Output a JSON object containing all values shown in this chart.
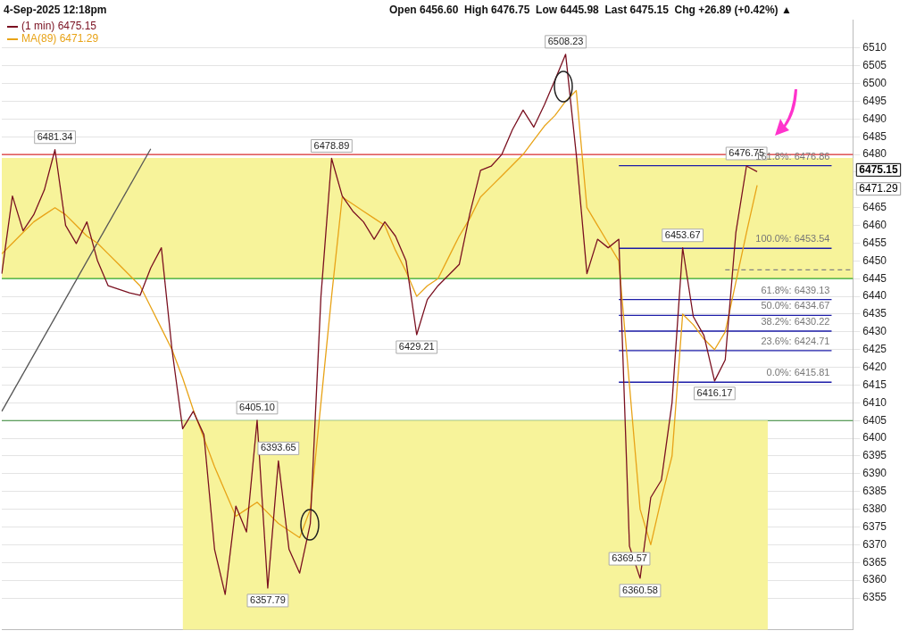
{
  "chart_data": {
    "type": "line",
    "title": "4-Sep-2025 12:18pm",
    "subtitle": "Open 6456.60  High 6476.75  Low 6445.98  Last 6475.15  Chg +26.89 (+0.42%) ▲",
    "categories": [
      null,
      null,
      null,
      null,
      null,
      null,
      null,
      null,
      null,
      null,
      null,
      null,
      null,
      null,
      null,
      null,
      null,
      null,
      null,
      null,
      null,
      null,
      null,
      null,
      null,
      null,
      null,
      null,
      null,
      null,
      null,
      null,
      null,
      null,
      null,
      null,
      null,
      null,
      null,
      null,
      null,
      null,
      null,
      null,
      null,
      null,
      null,
      null,
      null,
      null,
      null,
      null,
      null,
      null,
      null,
      null,
      null,
      null,
      null,
      null,
      null,
      null,
      null,
      null,
      null,
      null,
      null,
      null,
      null,
      null,
      null,
      null,
      null,
      null,
      null,
      null,
      null,
      null,
      null,
      null,
      null
    ],
    "ylim": [
      6346,
      6518
    ],
    "yticks": [
      6355,
      6360,
      6365,
      6370,
      6375,
      6380,
      6385,
      6390,
      6395,
      6400,
      6405,
      6410,
      6415,
      6420,
      6425,
      6430,
      6435,
      6440,
      6445,
      6450,
      6455,
      6460,
      6465,
      {
        "value": 6470,
        "label": null
      },
      {
        "value": 6475,
        "label": null
      },
      6480,
      6485,
      6490,
      6495,
      6500,
      6505,
      6510
    ],
    "tick_labels": "y",
    "grid": "y",
    "legend": "top left",
    "series": [
      {
        "name": "(1 min) 6475.15",
        "color": "#7a1020",
        "values": [
          6446.4,
          6468.3,
          6458.5,
          6463,
          6470,
          6481.34,
          6460,
          6454.9,
          6461,
          6450,
          6443,
          6442,
          6441,
          6440.3,
          6448,
          6453.7,
          6425,
          6402.7,
          6407.6,
          6401,
          6368.7,
          6356,
          6380.9,
          6373.6,
          6405.1,
          6357.79,
          6393.65,
          6368.7,
          6362,
          6376,
          6440,
          6478.89,
          6468.3,
          6464,
          6461,
          6456.1,
          6461,
          6457,
          6450,
          6429.21,
          6439.1,
          6443,
          6446,
          6449,
          6463.4,
          6475.5,
          6476.7,
          6480,
          6487,
          6492.5,
          6487.7,
          6494,
          6501,
          6508.23,
          6480,
          6446.4,
          6456.1,
          6453.7,
          6456.1,
          6369.57,
          6360.58,
          6383.3,
          6388.2,
          6410,
          6453.67,
          6434.3,
          6429,
          6416.17,
          6422.1,
          6458,
          6476.75,
          6475.15,
          null,
          null,
          null,
          null,
          null,
          null,
          null,
          null,
          null
        ]
      },
      {
        "name": "MA(89) 6471.29",
        "color": "#e8a317",
        "values": [
          6452,
          6455,
          6458,
          6461,
          6463,
          6465,
          6463,
          6460,
          6457,
          6455,
          6452,
          6449,
          6446,
          6443,
          6437,
          6431,
          6425,
          6417,
          6408,
          6400,
          6392,
          6385,
          6378,
          6380,
          6382,
          6379,
          6376,
          6374,
          6372,
          6380,
          6410,
          6440,
          6468,
          6466,
          6464,
          6462,
          6460,
          6453,
          6447,
          6440,
          6443,
          6445,
          6451,
          6457,
          6462,
          6468,
          6471,
          6474,
          6477,
          6480,
          6484,
          6488,
          6491,
          6495,
          6498,
          6465,
          6460,
          6455,
          6450,
          6415,
          6380,
          6370,
          6383,
          6395,
          6435,
          6432,
          6428,
          6425,
          6430,
          6444,
          6458,
          6471.29,
          null,
          null,
          null,
          null,
          null,
          null,
          null,
          null,
          null
        ]
      },
      {
        "color": "#555555",
        "values": [
          6407.6,
          null,
          null,
          null,
          null,
          null,
          null,
          null,
          null,
          null,
          null,
          null,
          null,
          null,
          6481.6,
          null,
          null,
          null,
          null,
          null,
          null,
          null,
          null,
          null,
          null,
          null,
          null,
          null,
          null,
          null,
          null,
          null,
          null,
          null,
          null,
          null,
          null,
          null,
          null,
          null,
          null,
          null,
          null,
          null,
          null,
          null,
          null,
          null,
          null,
          null,
          null,
          null,
          null,
          null,
          null,
          null,
          null,
          null,
          null,
          null,
          null,
          null,
          null,
          null,
          null,
          null,
          null,
          null,
          null,
          null,
          null,
          null,
          null,
          null,
          null,
          null,
          null,
          null,
          null,
          null,
          null
        ]
      },
      {
        "color": "#1c1ca8",
        "values": [
          null,
          null,
          null,
          null,
          null,
          null,
          null,
          null,
          null,
          null,
          null,
          null,
          null,
          null,
          null,
          null,
          null,
          null,
          null,
          null,
          null,
          null,
          null,
          null,
          null,
          null,
          null,
          null,
          null,
          null,
          null,
          null,
          null,
          null,
          null,
          null,
          null,
          null,
          null,
          null,
          null,
          null,
          null,
          null,
          null,
          null,
          null,
          null,
          null,
          null,
          null,
          null,
          null,
          null,
          null,
          null,
          null,
          null,
          6476.86,
          null,
          null,
          null,
          null,
          null,
          null,
          null,
          null,
          null,
          null,
          null,
          null,
          null,
          null,
          null,
          null,
          null,
          null,
          null,
          6476.86,
          null,
          null
        ]
      },
      {
        "color": "#1c1ca8",
        "values": [
          null,
          null,
          null,
          null,
          null,
          null,
          null,
          null,
          null,
          null,
          null,
          null,
          null,
          null,
          null,
          null,
          null,
          null,
          null,
          null,
          null,
          null,
          null,
          null,
          null,
          null,
          null,
          null,
          null,
          null,
          null,
          null,
          null,
          null,
          null,
          null,
          null,
          null,
          null,
          null,
          null,
          null,
          null,
          null,
          null,
          null,
          null,
          null,
          null,
          null,
          null,
          null,
          null,
          null,
          null,
          null,
          null,
          null,
          6453.54,
          null,
          null,
          null,
          null,
          null,
          null,
          null,
          null,
          null,
          null,
          null,
          null,
          null,
          null,
          null,
          null,
          null,
          null,
          null,
          6453.54,
          null,
          null
        ]
      },
      {
        "color": "#1c1ca8",
        "values": [
          null,
          null,
          null,
          null,
          null,
          null,
          null,
          null,
          null,
          null,
          null,
          null,
          null,
          null,
          null,
          null,
          null,
          null,
          null,
          null,
          null,
          null,
          null,
          null,
          null,
          null,
          null,
          null,
          null,
          null,
          null,
          null,
          null,
          null,
          null,
          null,
          null,
          null,
          null,
          null,
          null,
          null,
          null,
          null,
          null,
          null,
          null,
          null,
          null,
          null,
          null,
          null,
          null,
          null,
          null,
          null,
          null,
          null,
          6439.13,
          null,
          null,
          null,
          null,
          null,
          null,
          null,
          null,
          null,
          null,
          null,
          null,
          null,
          null,
          null,
          null,
          null,
          null,
          null,
          6439.13,
          null,
          null
        ]
      },
      {
        "color": "#1c1ca8",
        "values": [
          null,
          null,
          null,
          null,
          null,
          null,
          null,
          null,
          null,
          null,
          null,
          null,
          null,
          null,
          null,
          null,
          null,
          null,
          null,
          null,
          null,
          null,
          null,
          null,
          null,
          null,
          null,
          null,
          null,
          null,
          null,
          null,
          null,
          null,
          null,
          null,
          null,
          null,
          null,
          null,
          null,
          null,
          null,
          null,
          null,
          null,
          null,
          null,
          null,
          null,
          null,
          null,
          null,
          null,
          null,
          null,
          null,
          null,
          6434.67,
          null,
          null,
          null,
          null,
          null,
          null,
          null,
          null,
          null,
          null,
          null,
          null,
          null,
          null,
          null,
          null,
          null,
          null,
          null,
          6434.67,
          null,
          null
        ]
      },
      {
        "color": "#1c1ca8",
        "values": [
          null,
          null,
          null,
          null,
          null,
          null,
          null,
          null,
          null,
          null,
          null,
          null,
          null,
          null,
          null,
          null,
          null,
          null,
          null,
          null,
          null,
          null,
          null,
          null,
          null,
          null,
          null,
          null,
          null,
          null,
          null,
          null,
          null,
          null,
          null,
          null,
          null,
          null,
          null,
          null,
          null,
          null,
          null,
          null,
          null,
          null,
          null,
          null,
          null,
          null,
          null,
          null,
          null,
          null,
          null,
          null,
          null,
          null,
          6430.22,
          null,
          null,
          null,
          null,
          null,
          null,
          null,
          null,
          null,
          null,
          null,
          null,
          null,
          null,
          null,
          null,
          null,
          null,
          null,
          6430.22,
          null,
          null
        ]
      },
      {
        "color": "#1c1ca8",
        "values": [
          null,
          null,
          null,
          null,
          null,
          null,
          null,
          null,
          null,
          null,
          null,
          null,
          null,
          null,
          null,
          null,
          null,
          null,
          null,
          null,
          null,
          null,
          null,
          null,
          null,
          null,
          null,
          null,
          null,
          null,
          null,
          null,
          null,
          null,
          null,
          null,
          null,
          null,
          null,
          null,
          null,
          null,
          null,
          null,
          null,
          null,
          null,
          null,
          null,
          null,
          null,
          null,
          null,
          null,
          null,
          null,
          null,
          null,
          6424.71,
          null,
          null,
          null,
          null,
          null,
          null,
          null,
          null,
          null,
          null,
          null,
          null,
          null,
          null,
          null,
          null,
          null,
          null,
          null,
          6424.71,
          null,
          null
        ]
      },
      {
        "color": "#1c1ca8",
        "values": [
          null,
          null,
          null,
          null,
          null,
          null,
          null,
          null,
          null,
          null,
          null,
          null,
          null,
          null,
          null,
          null,
          null,
          null,
          null,
          null,
          null,
          null,
          null,
          null,
          null,
          null,
          null,
          null,
          null,
          null,
          null,
          null,
          null,
          null,
          null,
          null,
          null,
          null,
          null,
          null,
          null,
          null,
          null,
          null,
          null,
          null,
          null,
          null,
          null,
          null,
          null,
          null,
          null,
          null,
          null,
          null,
          null,
          null,
          6415.81,
          null,
          null,
          null,
          null,
          null,
          null,
          null,
          null,
          null,
          null,
          null,
          null,
          null,
          null,
          null,
          null,
          null,
          null,
          null,
          6415.81,
          null,
          null
        ]
      },
      {
        "color": "#808080",
        "line_style": "dashed",
        "values": [
          null,
          null,
          null,
          null,
          null,
          null,
          null,
          null,
          null,
          null,
          null,
          null,
          null,
          null,
          null,
          null,
          null,
          null,
          null,
          null,
          null,
          null,
          null,
          null,
          null,
          null,
          null,
          null,
          null,
          null,
          null,
          null,
          null,
          null,
          null,
          null,
          null,
          null,
          null,
          null,
          null,
          null,
          null,
          null,
          null,
          null,
          null,
          null,
          null,
          null,
          null,
          null,
          null,
          null,
          null,
          null,
          null,
          null,
          null,
          null,
          null,
          null,
          null,
          null,
          null,
          null,
          null,
          null,
          6447.5,
          null,
          null,
          null,
          null,
          null,
          null,
          null,
          null,
          null,
          null,
          null,
          6447.5
        ]
      },
      {
        "type": "area",
        "color": "#f7f39a",
        "values": [
          null,
          null,
          null,
          null,
          null,
          null,
          null,
          null,
          null,
          null,
          null,
          null,
          null,
          null,
          null,
          null,
          null,
          6405,
          null,
          null,
          null,
          null,
          null,
          null,
          null,
          null,
          null,
          null,
          null,
          null,
          null,
          null,
          null,
          null,
          null,
          null,
          null,
          null,
          null,
          null,
          null,
          null,
          null,
          null,
          null,
          null,
          null,
          null,
          null,
          null,
          null,
          null,
          null,
          null,
          null,
          null,
          null,
          null,
          null,
          null,
          null,
          null,
          null,
          null,
          null,
          null,
          null,
          null,
          null,
          null,
          null,
          null,
          6405,
          null,
          null,
          null,
          null,
          null,
          null,
          null,
          null
        ]
      }
    ],
    "bands": [
      {
        "axis": "y",
        "from": 6445,
        "to": 6479,
        "color": "#f7f39a"
      }
    ],
    "ref_lines": [
      {
        "axis": "y",
        "value": 6480,
        "color": "#dd3333"
      },
      {
        "axis": "y",
        "value": 6445,
        "color": "#33aa33"
      },
      {
        "axis": "y",
        "value": 6405,
        "color": "#338833"
      }
    ],
    "annotations": [
      {
        "text": "6481.34",
        "y": 6481.34
      },
      {
        "text": "6478.89",
        "y": 6478.89
      },
      {
        "text": "6508.23",
        "y": 6508.23
      },
      {
        "text": "6429.21",
        "y": 6429.21
      },
      {
        "text": "6405.10",
        "y": 6405.1
      },
      {
        "text": "6393.65",
        "y": 6393.65
      },
      {
        "text": "6357.79",
        "y": 6357.79
      },
      {
        "text": "6369.57",
        "y": 6369.57
      },
      {
        "text": "6360.58",
        "y": 6360.58
      },
      {
        "text": "6453.67",
        "y": 6453.67
      },
      {
        "text": "6416.17",
        "y": 6416.17
      },
      {
        "text": "6476.75",
        "y": 6476.75
      },
      {
        "text": "161.8%: 6476.86",
        "y": 6476.86
      },
      {
        "text": "100.0%: 6453.54",
        "y": 6453.54
      },
      {
        "text": "61.8%: 6439.13",
        "y": 6439.13
      },
      {
        "text": "50.0%: 6434.67",
        "y": 6434.67
      },
      {
        "text": "38.2%: 6430.22",
        "y": 6430.22
      },
      {
        "text": "23.6%: 6424.71",
        "y": 6424.71
      },
      {
        "text": "0.0%: 6415.81",
        "y": 6415.81
      },
      "6475.15",
      "6471.29"
    ]
  }
}
